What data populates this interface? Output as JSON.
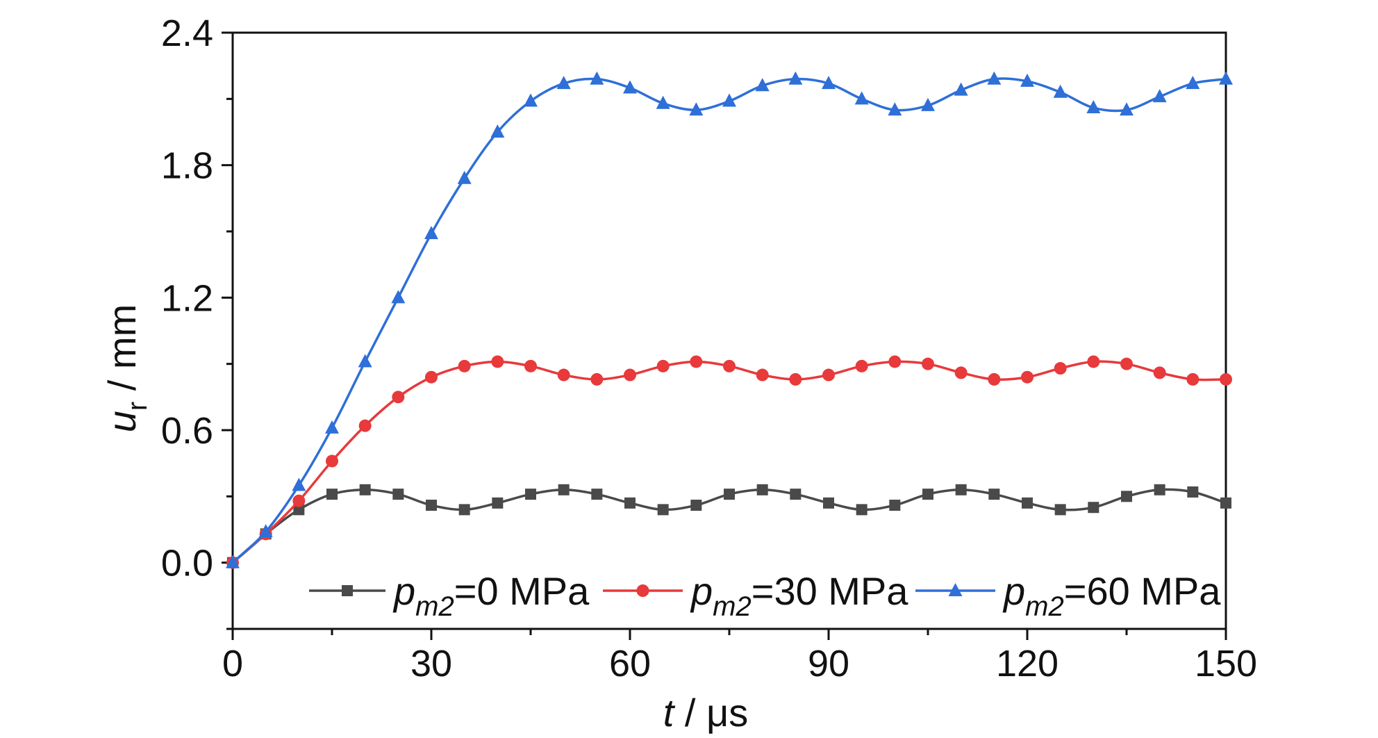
{
  "chart_data": {
    "type": "line",
    "xlabel": {
      "var": "t",
      "unit": " / μs"
    },
    "ylabel": {
      "var": "u",
      "sub": "r",
      "unit": " / mm"
    },
    "xlim": [
      0,
      150
    ],
    "ylim": [
      -0.3,
      2.4
    ],
    "x_ticks": [
      0,
      30,
      60,
      90,
      120,
      150
    ],
    "x_tick_labels": [
      "0",
      "30",
      "60",
      "90",
      "120",
      "150"
    ],
    "y_ticks": [
      0.0,
      0.6,
      1.2,
      1.8,
      2.4
    ],
    "y_tick_labels": [
      "0.0",
      "0.6",
      "1.2",
      "1.8",
      "2.4"
    ],
    "grid": false,
    "legend_position": "bottom",
    "x": [
      0,
      5,
      10,
      15,
      20,
      25,
      30,
      35,
      40,
      45,
      50,
      55,
      60,
      65,
      70,
      75,
      80,
      85,
      90,
      95,
      100,
      105,
      110,
      115,
      120,
      125,
      130,
      135,
      140,
      145,
      150
    ],
    "series": [
      {
        "legend": {
          "var": "p",
          "sub": "m2",
          "rest": "=0 MPa"
        },
        "color": "#4a4a4a",
        "marker": "square",
        "values": [
          0.0,
          0.13,
          0.24,
          0.31,
          0.33,
          0.31,
          0.26,
          0.24,
          0.27,
          0.31,
          0.33,
          0.31,
          0.27,
          0.24,
          0.26,
          0.31,
          0.33,
          0.31,
          0.27,
          0.24,
          0.26,
          0.31,
          0.33,
          0.31,
          0.27,
          0.24,
          0.25,
          0.3,
          0.33,
          0.32,
          0.27
        ]
      },
      {
        "legend": {
          "var": "p",
          "sub": "m2",
          "rest": "=30 MPa"
        },
        "color": "#e8393b",
        "marker": "circle",
        "values": [
          0.0,
          0.13,
          0.28,
          0.46,
          0.62,
          0.75,
          0.84,
          0.89,
          0.91,
          0.89,
          0.85,
          0.83,
          0.85,
          0.89,
          0.91,
          0.89,
          0.85,
          0.83,
          0.85,
          0.89,
          0.91,
          0.9,
          0.86,
          0.83,
          0.84,
          0.88,
          0.91,
          0.9,
          0.86,
          0.83,
          0.83
        ]
      },
      {
        "legend": {
          "var": "p",
          "sub": "m2",
          "rest": "=60 MPa"
        },
        "color": "#2e6fd8",
        "marker": "triangle",
        "values": [
          0.0,
          0.14,
          0.35,
          0.61,
          0.91,
          1.2,
          1.49,
          1.74,
          1.95,
          2.09,
          2.17,
          2.19,
          2.15,
          2.08,
          2.05,
          2.09,
          2.16,
          2.19,
          2.17,
          2.1,
          2.05,
          2.07,
          2.14,
          2.19,
          2.18,
          2.13,
          2.06,
          2.05,
          2.11,
          2.17,
          2.19
        ]
      }
    ]
  }
}
